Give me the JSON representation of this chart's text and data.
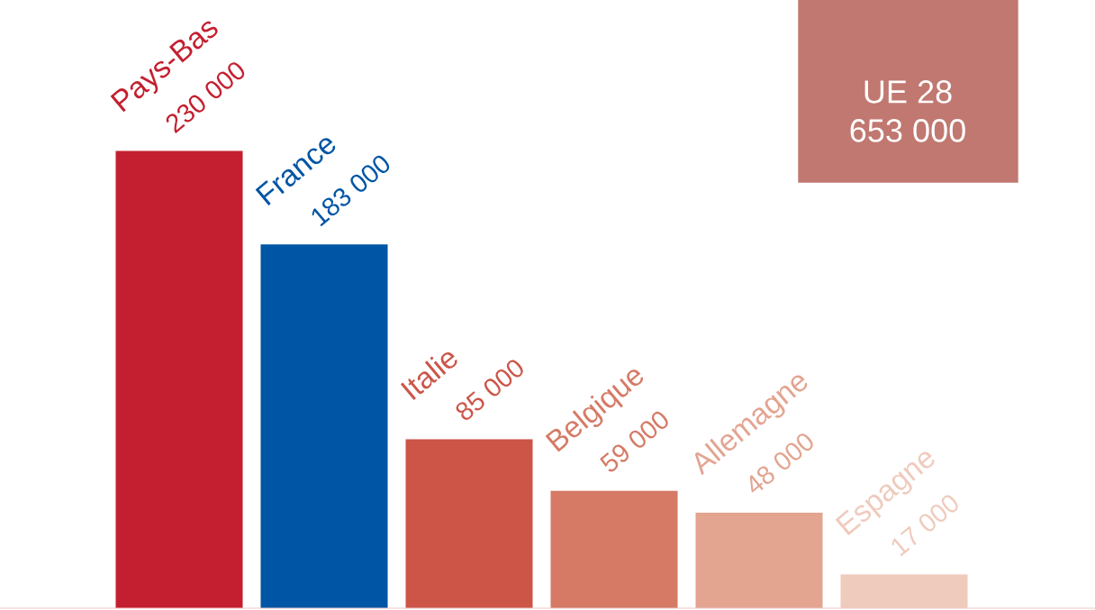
{
  "chart_data": {
    "type": "bar",
    "categories": [
      "Pays-Bas",
      "France",
      "Italie",
      "Belgique",
      "Allemagne",
      "Espagne"
    ],
    "values": [
      230000,
      183000,
      85000,
      59000,
      48000,
      17000
    ],
    "colors": [
      "#c41f30",
      "#0055a5",
      "#cc5548",
      "#d67a66",
      "#e3a490",
      "#efcbbd"
    ],
    "value_labels": [
      "230 000",
      "183 000",
      "85 000",
      "59 000",
      "48 000",
      "17 000"
    ],
    "annotations": [
      "UE 28",
      "653 000"
    ],
    "legend": false
  }
}
